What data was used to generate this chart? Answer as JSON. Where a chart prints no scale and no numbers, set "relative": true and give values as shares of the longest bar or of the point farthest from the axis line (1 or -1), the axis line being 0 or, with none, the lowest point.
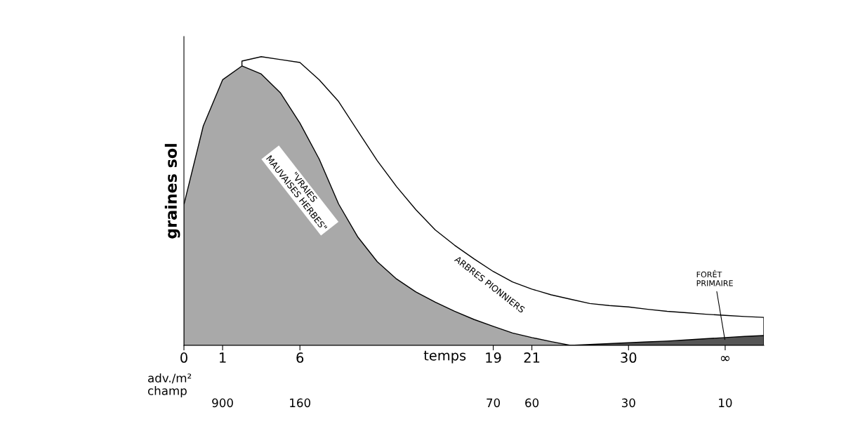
{
  "chart_data": {
    "type": "area",
    "relative": true,
    "ylabel": "graines sol",
    "xlabel": "temps",
    "categories": [
      "0",
      null,
      "1",
      null,
      null,
      null,
      "6",
      null,
      null,
      null,
      null,
      null,
      null,
      null,
      null,
      null,
      "19",
      null,
      "21",
      null,
      null,
      null,
      null,
      "30",
      null,
      null,
      null,
      null,
      "∞",
      null,
      null
    ],
    "series": [
      {
        "name": "ARBRES PIONNIERS",
        "color": "#ffffff",
        "values": [
          null,
          null,
          null,
          0.985,
          1.0,
          0.99,
          0.98,
          0.92,
          0.845,
          0.742,
          0.64,
          0.55,
          0.47,
          0.4,
          0.347,
          0.3,
          0.256,
          0.22,
          0.195,
          0.175,
          0.16,
          0.145,
          0.138,
          0.133,
          0.125,
          0.118,
          0.113,
          0.108,
          0.104,
          0.1,
          0.097
        ]
      },
      {
        "name": "\"VRAIES\nMAUVAISES HERBES\"",
        "color": "#a9a9a9",
        "values": [
          0.488,
          0.76,
          0.92,
          0.968,
          0.94,
          0.874,
          0.77,
          0.645,
          0.49,
          0.375,
          0.29,
          0.23,
          0.185,
          0.15,
          0.118,
          0.09,
          0.066,
          0.043,
          0.027,
          0.013,
          0,
          null,
          null,
          null,
          null,
          null,
          null,
          null,
          null,
          null,
          null
        ]
      },
      {
        "name": "FORÊT\nPRIMAIRE",
        "color": "#555555",
        "values": [
          null,
          null,
          null,
          null,
          null,
          null,
          null,
          null,
          null,
          null,
          null,
          null,
          null,
          null,
          null,
          null,
          null,
          null,
          null,
          null,
          0,
          0.003,
          0.006,
          0.009,
          0.012,
          0.015,
          0.019,
          0.023,
          0.027,
          0.031,
          0.034
        ]
      }
    ],
    "annotations": [
      "adv./m²",
      "champ",
      "900",
      "160",
      "70",
      "60",
      "30",
      "10"
    ],
    "grid": false,
    "legend": false
  }
}
